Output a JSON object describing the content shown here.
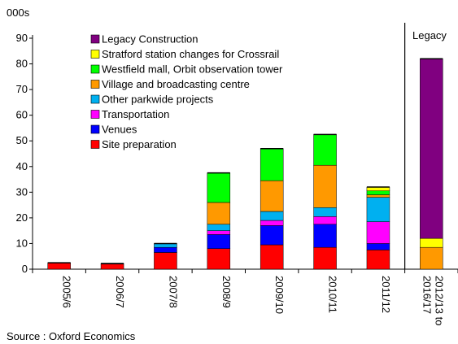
{
  "chart_data": {
    "type": "bar",
    "stacked": true,
    "unit_label": "000s",
    "ylim": [
      0,
      90
    ],
    "yticks": [
      0,
      10,
      20,
      30,
      40,
      50,
      60,
      70,
      80,
      90
    ],
    "categories": [
      "2005/6",
      "2006/7",
      "2007/8",
      "2008/9",
      "2009/10",
      "2010/11",
      "2011/12",
      "2012/13 to 2016/17"
    ],
    "legacy_label": "Legacy",
    "legend_position": "top-left",
    "series": [
      {
        "name": "Site preparation",
        "color": "#ff0000",
        "values": [
          2.5,
          2.0,
          6.5,
          8.0,
          9.5,
          8.5,
          7.5,
          0
        ]
      },
      {
        "name": "Venues",
        "color": "#0000ff",
        "values": [
          0,
          0.2,
          2.0,
          5.5,
          7.5,
          9.0,
          2.5,
          0
        ]
      },
      {
        "name": "Transportation",
        "color": "#ff00ff",
        "values": [
          0,
          0,
          0,
          1.5,
          2.0,
          3.0,
          8.5,
          0
        ]
      },
      {
        "name": "Other parkwide projects",
        "color": "#00b0f0",
        "values": [
          0,
          0,
          1.5,
          2.5,
          3.5,
          3.5,
          9.5,
          0
        ]
      },
      {
        "name": "Village and broadcasting centre",
        "color": "#ff9900",
        "values": [
          0,
          0,
          0,
          8.5,
          12.0,
          16.5,
          1.0,
          8.5
        ]
      },
      {
        "name": "Westfield mall, Orbit observation tower",
        "color": "#00ff00",
        "values": [
          0,
          0,
          0,
          11.5,
          12.5,
          12.0,
          1.5,
          0
        ]
      },
      {
        "name": "Stratford station changes for Crossrail",
        "color": "#ffff00",
        "values": [
          0,
          0,
          0,
          0,
          0,
          0,
          1.5,
          3.5
        ]
      },
      {
        "name": "Legacy Construction",
        "color": "#800080",
        "values": [
          0,
          0,
          0,
          0,
          0,
          0,
          0,
          70.0
        ]
      }
    ],
    "legend_order": [
      "Legacy Construction",
      "Stratford station changes for Crossrail",
      "Westfield mall, Orbit observation tower",
      "Village and broadcasting centre",
      "Other parkwide projects",
      "Transportation",
      "Venues",
      "Site preparation"
    ],
    "source": "Source : Oxford Economics"
  }
}
